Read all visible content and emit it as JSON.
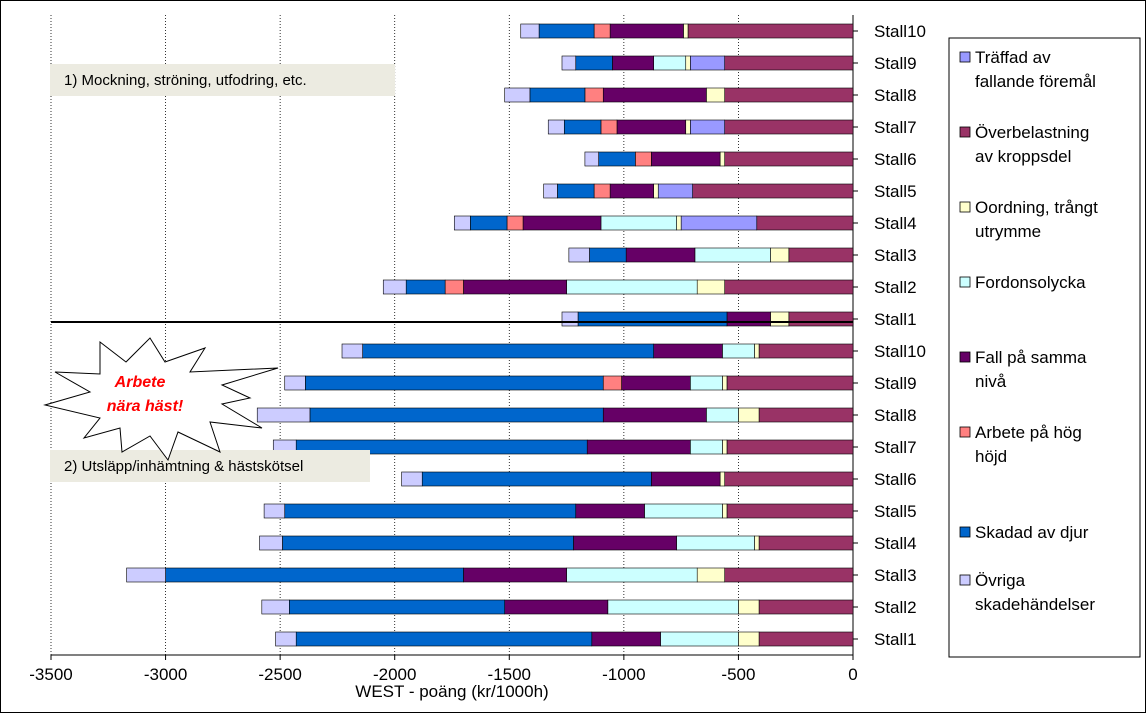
{
  "chart_data": {
    "type": "bar",
    "orientation": "horizontal",
    "stacked": true,
    "xlabel": "WEST - poäng (kr/1000h)",
    "xlim": [
      -3500,
      0
    ],
    "xticks": [
      -3500,
      -3000,
      -2500,
      -2000,
      -1500,
      -1000,
      -500,
      0
    ],
    "grid": "vertical",
    "legend_position": "right",
    "categories": [
      "Stall10",
      "Stall9",
      "Stall8",
      "Stall7",
      "Stall6",
      "Stall5",
      "Stall4",
      "Stall3",
      "Stall2",
      "Stall1",
      "Stall10",
      "Stall9",
      "Stall8",
      "Stall7",
      "Stall6",
      "Stall5",
      "Stall4",
      "Stall3",
      "Stall2",
      "Stall1"
    ],
    "series": [
      {
        "name": "Överbelastning av kroppsdel",
        "color": "#993366",
        "values": [
          -720,
          -560,
          -560,
          -560,
          -560,
          -700,
          -420,
          -280,
          -560,
          -280,
          -410,
          -550,
          -410,
          -550,
          -560,
          -550,
          -410,
          -560,
          -410,
          -410
        ]
      },
      {
        "name": "Träffad av fallande föremål",
        "color": "#9999ff",
        "values": [
          0,
          -150,
          0,
          -150,
          0,
          -150,
          -330,
          0,
          0,
          0,
          0,
          0,
          0,
          0,
          0,
          0,
          0,
          0,
          0,
          0
        ]
      },
      {
        "name": "Oordning, trångt utrymme",
        "color": "#ffffcc",
        "values": [
          -20,
          -20,
          -80,
          -20,
          -20,
          -20,
          -20,
          -80,
          -120,
          -80,
          -20,
          -20,
          -90,
          -20,
          -20,
          -20,
          -20,
          -120,
          -90,
          -90
        ]
      },
      {
        "name": "Fordonsolycka",
        "color": "#ccffff",
        "values": [
          0,
          -140,
          0,
          0,
          0,
          0,
          -330,
          -330,
          -570,
          0,
          -140,
          -140,
          -140,
          -140,
          0,
          -340,
          -340,
          -570,
          -570,
          -340
        ]
      },
      {
        "name": "Fall på samma nivå",
        "color": "#660066",
        "values": [
          -320,
          -180,
          -450,
          -300,
          -300,
          -190,
          -340,
          -300,
          -450,
          -190,
          -300,
          -300,
          -450,
          -450,
          -300,
          -300,
          -450,
          -450,
          -450,
          -300
        ]
      },
      {
        "name": "Arbete på hög höjd",
        "color": "#ff8080",
        "values": [
          -70,
          0,
          -80,
          -70,
          -70,
          -70,
          -70,
          0,
          -80,
          0,
          0,
          -80,
          0,
          0,
          0,
          0,
          0,
          0,
          0,
          0
        ]
      },
      {
        "name": "Skadad av djur",
        "color": "#0066cc",
        "values": [
          -240,
          -160,
          -240,
          -160,
          -160,
          -160,
          -160,
          -160,
          -170,
          -650,
          -1270,
          -1300,
          -1280,
          -1270,
          -1000,
          -1270,
          -1270,
          -1300,
          -940,
          -1290
        ]
      },
      {
        "name": "Övriga skadehändelser",
        "color": "#ccccff",
        "values": [
          -80,
          -60,
          -110,
          -70,
          -60,
          -60,
          -70,
          -90,
          -100,
          -70,
          -90,
          -90,
          -230,
          -100,
          -90,
          -90,
          -100,
          -170,
          -120,
          -90
        ]
      }
    ],
    "legend_order": [
      "Träffad av fallande föremål",
      "Överbelastning av kroppsdel",
      "Oordning, trångt utrymme",
      "Fordonsolycka",
      "Fall på samma nivå",
      "Arbete på hög höjd",
      "Skadad av djur",
      "Övriga skadehändelser"
    ],
    "annotations": {
      "group1": "1) Mockning, ströning, utfodring, etc.",
      "group2": "2) Utsläpp/inhämtning & hästskötsel",
      "callout_line1": "Arbete",
      "callout_line2": "nära häst!"
    }
  }
}
